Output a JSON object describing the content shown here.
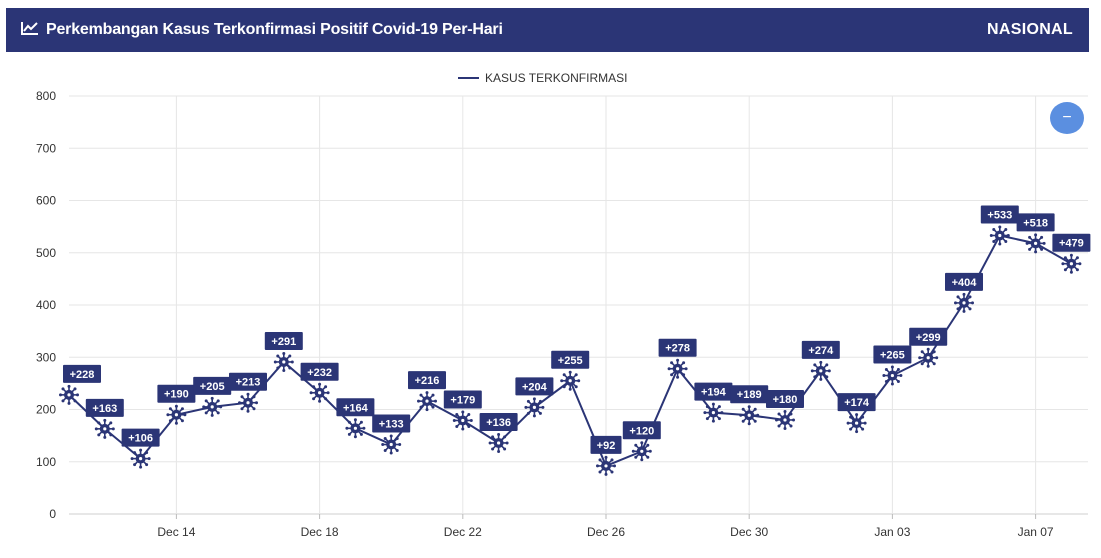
{
  "header": {
    "title": "Perkembangan Kasus Terkonfirmasi Positif Covid-19 Per-Hari",
    "scope": "NASIONAL",
    "title_icon": "line-chart-icon",
    "background": "#2b3576"
  },
  "zoom_button": {
    "label": "−",
    "icon": "minus-icon",
    "color": "#5b8fe0"
  },
  "chart_data": {
    "type": "line",
    "title": "",
    "xlabel": "",
    "ylabel": "",
    "ylim": [
      0,
      800
    ],
    "yticks": [
      0,
      100,
      200,
      300,
      400,
      500,
      600,
      700,
      800
    ],
    "grid": true,
    "legend": "top-center",
    "x_ticks": [
      {
        "day": 3,
        "label": "Dec 14"
      },
      {
        "day": 7,
        "label": "Dec 18"
      },
      {
        "day": 11,
        "label": "Dec 22"
      },
      {
        "day": 15,
        "label": "Dec 26"
      },
      {
        "day": 19,
        "label": "Dec 30"
      },
      {
        "day": 23,
        "label": "Jan 03"
      },
      {
        "day": 27,
        "label": "Jan 07"
      }
    ],
    "series": [
      {
        "name": "KASUS TERKONFIRMASI",
        "color": "#2b3576",
        "marker": "virus-icon",
        "x": [
          "Dec 11",
          "Dec 12",
          "Dec 13",
          "Dec 14",
          "Dec 15",
          "Dec 16",
          "Dec 17",
          "Dec 18",
          "Dec 19",
          "Dec 20",
          "Dec 21",
          "Dec 22",
          "Dec 23",
          "Dec 24",
          "Dec 25",
          "Dec 26",
          "Dec 27",
          "Dec 28",
          "Dec 29",
          "Dec 30",
          "Dec 31",
          "Jan 01",
          "Jan 02",
          "Jan 03",
          "Jan 04",
          "Jan 05",
          "Jan 06",
          "Jan 07",
          "Jan 08"
        ],
        "values": [
          228,
          163,
          106,
          190,
          205,
          213,
          291,
          232,
          164,
          133,
          216,
          179,
          136,
          204,
          255,
          92,
          120,
          278,
          194,
          189,
          180,
          274,
          174,
          265,
          299,
          404,
          533,
          518,
          479
        ],
        "labels": [
          "+228",
          "+163",
          "+106",
          "+190",
          "+205",
          "+213",
          "+291",
          "+232",
          "+164",
          "+133",
          "+216",
          "+179",
          "+136",
          "+204",
          "+255",
          "+92",
          "+120",
          "+278",
          "+194",
          "+189",
          "+180",
          "+274",
          "+174",
          "+265",
          "+299",
          "+404",
          "+533",
          "+518",
          "+479"
        ]
      }
    ]
  }
}
